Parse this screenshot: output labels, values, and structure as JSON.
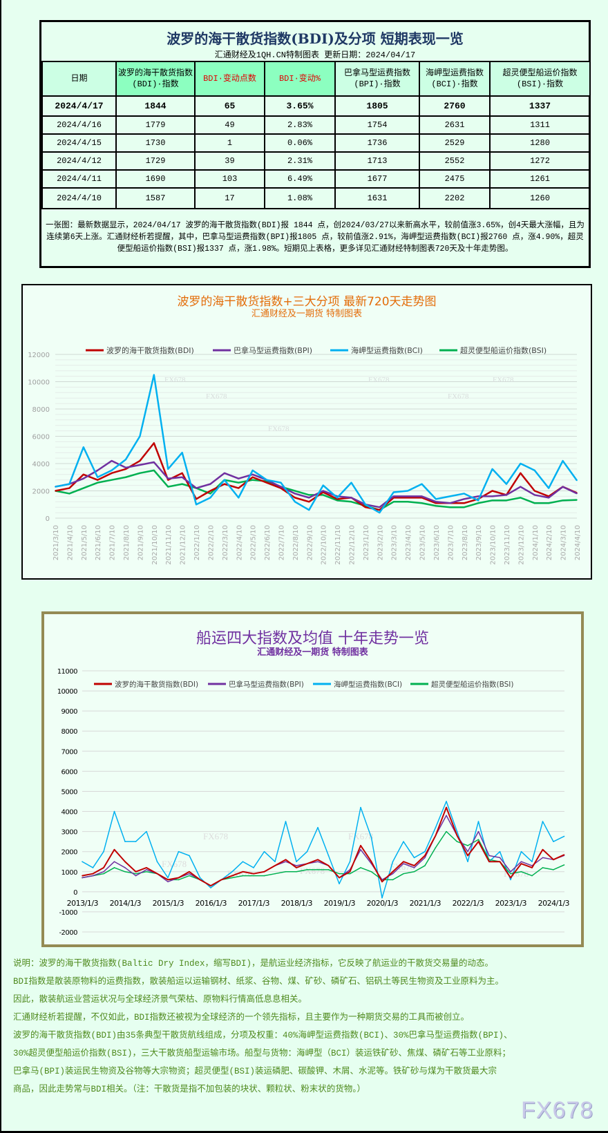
{
  "table": {
    "title": "波罗的海干散货指数(BDI)及分项 短期表现一览",
    "subtitle": "汇通财经及1QH.CN特制图表    更新日期：2024/04/17",
    "headers": [
      "日期",
      "波罗的海干散货指数(BDI)·指数",
      "BDI·变动点数",
      "BDI·变动%",
      "巴拿马型运费指数(BPI)·指数",
      "海岬型运费指数(BCI)·指数",
      "超灵便型船运价指数(BSI)·指数"
    ],
    "rows": [
      [
        "2024/4/17",
        "1844",
        "65",
        "3.65%",
        "1805",
        "2760",
        "1337"
      ],
      [
        "2024/4/16",
        "1779",
        "49",
        "2.83%",
        "1754",
        "2631",
        "1311"
      ],
      [
        "2024/4/15",
        "1730",
        "1",
        "0.06%",
        "1736",
        "2529",
        "1280"
      ],
      [
        "2024/4/12",
        "1729",
        "39",
        "2.31%",
        "1713",
        "2552",
        "1272"
      ],
      [
        "2024/4/11",
        "1690",
        "103",
        "6.49%",
        "1677",
        "2475",
        "1261"
      ],
      [
        "2024/4/10",
        "1587",
        "17",
        "1.08%",
        "1631",
        "2202",
        "1260"
      ]
    ],
    "note": "一张图：最新数据显示，2024/04/17 波罗的海干散货指数(BDI)报 1844 点，创2024/03/27以来新高水平，较前值涨3.65%，创4天最大涨幅，且为连续第6天上涨。汇通财经析若提醒，其中，巴拿马型运费指数(BPI)报1805 点，较前值涨2.91%，海岬型运费指数(BCI)报2760 点，涨4.90%，超灵便型船运价指数(BSI)报1337 点，涨1.98%。短期见上表格，更多详见汇通财经特制图表720天及十年走势图。"
  },
  "colors": {
    "BDI": "#c00000",
    "BPI": "#7030a0",
    "BCI": "#00b0f0",
    "BSI": "#00b050",
    "title_navy": "#1f3864",
    "chart1_title": "#e36c09",
    "chart2_title": "#7030a0",
    "desc_text": "#4f8a1e"
  },
  "chart_data": [
    {
      "type": "line",
      "title": "波罗的海干散货指数+三大分项  最新720天走势图",
      "subtitle": "汇通财经及一期货  特制图表",
      "ylim": [
        0,
        12000
      ],
      "yticks": [
        0,
        2000,
        4000,
        6000,
        8000,
        10000,
        12000
      ],
      "grid": true,
      "legend": "top",
      "categories": [
        "2021/3/10",
        "2021/4/10",
        "2021/5/10",
        "2021/6/10",
        "2021/7/10",
        "2021/8/10",
        "2021/9/10",
        "2021/10/10",
        "2021/11/10",
        "2021/12/10",
        "2022/1/10",
        "2022/2/10",
        "2022/3/10",
        "2022/4/10",
        "2022/5/10",
        "2022/6/10",
        "2022/7/10",
        "2022/8/10",
        "2022/9/10",
        "2022/10/10",
        "2022/11/10",
        "2022/12/10",
        "2023/1/10",
        "2023/2/10",
        "2023/3/10",
        "2023/4/10",
        "2023/5/10",
        "2023/6/10",
        "2023/7/10",
        "2023/8/10",
        "2023/9/10",
        "2023/10/10",
        "2023/11/10",
        "2023/12/10",
        "2024/1/10",
        "2024/2/10",
        "2024/3/10",
        "2024/4/10"
      ],
      "series": [
        {
          "name": "波罗的海干散货指数(BDI)",
          "key": "BDI",
          "values": [
            2000,
            2200,
            3200,
            2800,
            3300,
            3600,
            4200,
            5500,
            2800,
            3300,
            1400,
            2000,
            2500,
            2200,
            3000,
            2600,
            2200,
            1500,
            1200,
            1900,
            1400,
            1500,
            800,
            600,
            1500,
            1500,
            1500,
            1100,
            1100,
            1100,
            1400,
            2000,
            1700,
            3300,
            2000,
            1600,
            2300,
            1844
          ]
        },
        {
          "name": "巴拿马型运费指数(BPI)",
          "key": "BPI",
          "values": [
            2300,
            2500,
            2900,
            3500,
            4200,
            3700,
            3900,
            4100,
            2900,
            3000,
            2200,
            2500,
            3300,
            2900,
            3200,
            2800,
            2300,
            1800,
            1500,
            2000,
            1600,
            1500,
            1000,
            800,
            1600,
            1600,
            1600,
            1200,
            1100,
            1400,
            1600,
            1600,
            1700,
            2300,
            1700,
            1500,
            2300,
            1805
          ]
        },
        {
          "name": "海岬型运费指数(BCI)",
          "key": "BCI",
          "values": [
            2300,
            2500,
            5200,
            3000,
            3500,
            4300,
            6000,
            10500,
            3600,
            4800,
            1000,
            1500,
            2800,
            1500,
            3500,
            2800,
            2600,
            1200,
            600,
            2400,
            1500,
            2600,
            1000,
            400,
            1900,
            2000,
            2500,
            1400,
            1600,
            1800,
            1300,
            3600,
            2500,
            4000,
            3500,
            2200,
            4200,
            2760
          ]
        },
        {
          "name": "超灵便型船运价指数(BSI)",
          "key": "BSI",
          "values": [
            2000,
            1800,
            2200,
            2600,
            2800,
            3000,
            3300,
            3500,
            2300,
            2500,
            2200,
            1800,
            2800,
            2600,
            2800,
            2700,
            2300,
            2000,
            1700,
            1700,
            1300,
            1200,
            900,
            600,
            1200,
            1200,
            1100,
            900,
            800,
            800,
            1100,
            1300,
            1300,
            1500,
            1100,
            1100,
            1300,
            1337
          ]
        }
      ],
      "watermarks": [
        "FX678",
        "FX678",
        "FX678",
        "FX678",
        "FX678",
        "FX678"
      ]
    },
    {
      "type": "line",
      "title": "船运四大指数及均值 十年走势一览",
      "subtitle": "汇通财经及一期货 特制图表",
      "ylim": [
        -2000,
        11000
      ],
      "yticks": [
        -2000,
        -1000,
        0,
        1000,
        2000,
        3000,
        4000,
        5000,
        6000,
        7000,
        8000,
        9000,
        10000,
        11000
      ],
      "grid": true,
      "legend": "top",
      "xticks": [
        "2013/1/3",
        "2014/1/3",
        "2015/1/3",
        "2016/1/3",
        "2017/1/3",
        "2018/1/3",
        "2019/1/3",
        "2020/1/3",
        "2021/1/3",
        "2022/1/3",
        "2023/1/3",
        "2024/1/3"
      ],
      "x": [
        "2013/1",
        "2013/4",
        "2013/7",
        "2013/10",
        "2014/1",
        "2014/4",
        "2014/7",
        "2014/10",
        "2015/1",
        "2015/4",
        "2015/7",
        "2015/10",
        "2016/1",
        "2016/4",
        "2016/7",
        "2016/10",
        "2017/1",
        "2017/4",
        "2017/7",
        "2017/10",
        "2018/1",
        "2018/4",
        "2018/7",
        "2018/10",
        "2019/1",
        "2019/4",
        "2019/7",
        "2019/10",
        "2020/1",
        "2020/4",
        "2020/7",
        "2020/10",
        "2021/1",
        "2021/4",
        "2021/7",
        "2021/10",
        "2022/1",
        "2022/4",
        "2022/7",
        "2022/10",
        "2023/1",
        "2023/4",
        "2023/7",
        "2023/10",
        "2024/1",
        "2024/4"
      ],
      "series": [
        {
          "name": "波罗的海干散货指数(BDI)",
          "key": "BDI",
          "values": [
            800,
            900,
            1200,
            2100,
            1500,
            1000,
            1200,
            900,
            600,
            700,
            1000,
            600,
            300,
            600,
            800,
            1000,
            900,
            1000,
            1300,
            1600,
            1200,
            1400,
            1600,
            1300,
            700,
            1000,
            2300,
            1500,
            500,
            1000,
            1500,
            1300,
            1800,
            2800,
            4200,
            2800,
            1800,
            2500,
            1500,
            1500,
            700,
            1400,
            1200,
            2100,
            1600,
            1844
          ]
        },
        {
          "name": "巴拿马型运费指数(BPI)",
          "key": "BPI",
          "values": [
            700,
            800,
            1000,
            1500,
            1200,
            800,
            1100,
            900,
            500,
            700,
            900,
            600,
            300,
            600,
            800,
            1000,
            900,
            1000,
            1300,
            1500,
            1300,
            1400,
            1500,
            1300,
            700,
            1100,
            2100,
            1400,
            600,
            900,
            1400,
            1200,
            1700,
            2800,
            3800,
            2800,
            2000,
            3000,
            1800,
            1700,
            1000,
            1500,
            1300,
            1700,
            1600,
            1805
          ]
        },
        {
          "name": "海岬型运费指数(BCI)",
          "key": "BCI",
          "values": [
            1500,
            1200,
            2000,
            4000,
            2500,
            2500,
            3000,
            1500,
            700,
            2000,
            1800,
            700,
            200,
            600,
            1000,
            1500,
            1200,
            2000,
            1500,
            3500,
            1500,
            2000,
            3200,
            1800,
            400,
            1500,
            4200,
            2700,
            -300,
            1500,
            2500,
            1700,
            2000,
            3200,
            4500,
            3000,
            1500,
            3500,
            1500,
            2000,
            600,
            2000,
            1500,
            3500,
            2500,
            2760
          ]
        },
        {
          "name": "超灵便型船运价指数(BSI)",
          "key": "BSI",
          "values": [
            700,
            800,
            900,
            1200,
            1000,
            900,
            1000,
            900,
            600,
            600,
            800,
            600,
            300,
            600,
            700,
            800,
            800,
            800,
            900,
            1000,
            1000,
            1100,
            1100,
            1100,
            900,
            900,
            1200,
            1000,
            600,
            600,
            900,
            1000,
            1300,
            2200,
            3000,
            2500,
            2300,
            2600,
            1600,
            1500,
            900,
            1000,
            800,
            1200,
            1100,
            1337
          ]
        }
      ],
      "watermarks": [
        "FX678",
        "FX678",
        "FX678",
        "FX678",
        "FX678",
        "FX678",
        "FX678",
        "FX678",
        "1QH.CN"
      ]
    }
  ],
  "description": [
    "说明：波罗的海干散货指数(Baltic Dry Index，缩写BDI)，是航运业经济指标，它反映了航运业的干散货交易量的动态。",
    "BDI指数是散装原物料的运费指数，散装船运以运输钢材、纸浆、谷物、煤、矿砂、磷矿石、铝矾土等民生物资及工业原料为主。",
    "因此，散装航运业营运状况与全球经济景气荣枯、原物料行情高低息息相关。",
    "汇通财经析若提醒，不仅如此，BDI指数还被视为全球经济的一个领先指标，且主要作为一种期货交易的工具而被创立。",
    "波罗的海干散货指数(BDI)由35条典型干散货航线组成，分项及权重：40%海岬型运费指数(BCI)、30%巴拿马型运费指数(BPI)、",
    "30%超灵便型船运价指数(BSI)，三大干散货船型运输市场。船型与货物：海岬型（BCI）装运铁矿砂、焦煤、磷矿石等工业原料；",
    "巴拿马(BPI)装运民生物资及谷物等大宗物资；超灵便型(BSI)装运磷肥、碳酸钾、木屑、水泥等。铁矿砂与煤为干散货最大宗",
    "商品，因此走势常与BDI相关。（注：干散货是指不加包装的块状、颗粒状、粉末状的货物。）"
  ],
  "watermark": "FX678"
}
